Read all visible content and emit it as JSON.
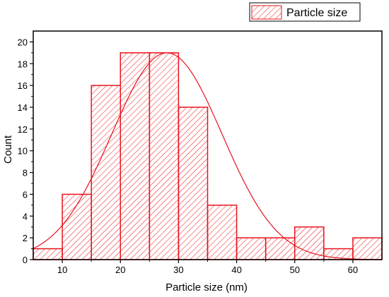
{
  "chart_data": {
    "type": "bar",
    "bin_edges": [
      5,
      10,
      15,
      20,
      25,
      30,
      35,
      40,
      45,
      50,
      55,
      60,
      65
    ],
    "values": [
      1,
      6,
      16,
      19,
      19,
      14,
      5,
      2,
      2,
      3,
      1,
      2
    ],
    "xlabel": "Particle size (nm)",
    "ylabel": "Count",
    "xlim": [
      5,
      65
    ],
    "ylim": [
      0,
      21
    ],
    "x_ticks": [
      10,
      20,
      30,
      40,
      50,
      60
    ],
    "y_ticks": [
      0,
      2,
      4,
      6,
      8,
      10,
      12,
      14,
      16,
      18,
      20
    ],
    "legend": {
      "label": "Particle size",
      "placement": "top-right, outside plot"
    },
    "fit_curve": {
      "type": "gaussian",
      "mean": 28,
      "sigma": 9.5,
      "peak": 19
    },
    "grid": false,
    "colors": {
      "bar": "#e8141c",
      "fit": "#e8141c",
      "axis": "#000000"
    }
  }
}
